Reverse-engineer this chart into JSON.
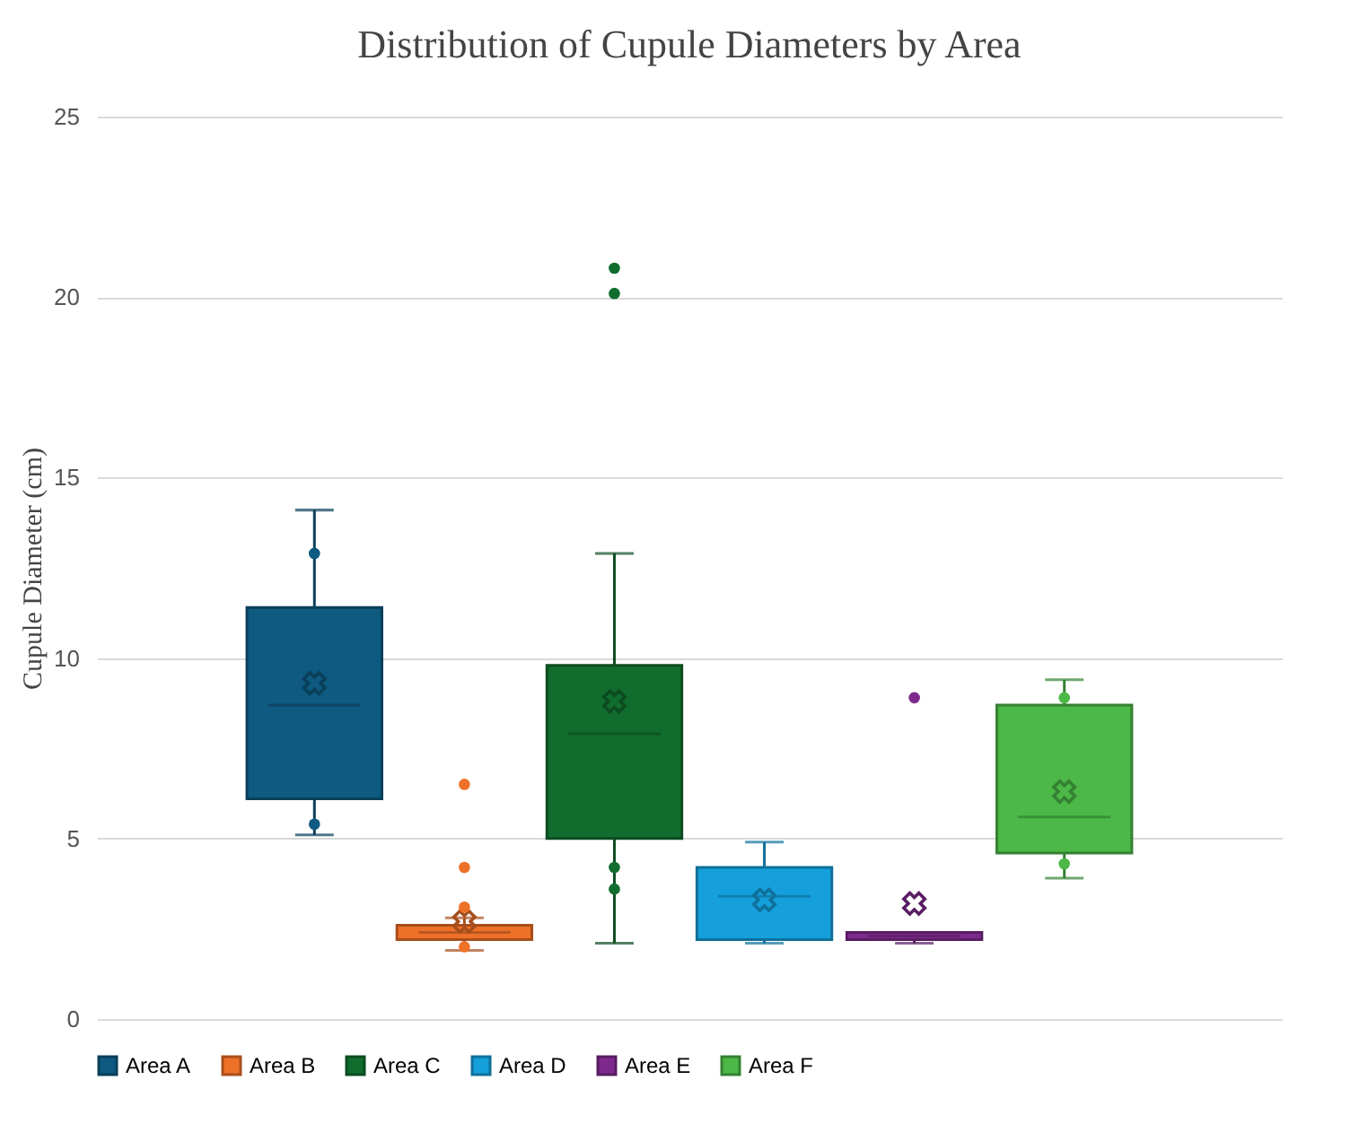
{
  "chart_data": {
    "type": "box",
    "title": "Distribution of Cupule Diameters by Area",
    "ylabel": "Cupule Diameter (cm)",
    "categories": [
      null
    ],
    "series": [
      {
        "name": "Area A",
        "color": "#0e5a80",
        "boxes": [
          {
            "low": 5.1,
            "q1": 6.1,
            "median": 8.7,
            "q3": 11.4,
            "high": 14.1,
            "mean": 9.3,
            "outliers": [
              12.9,
              5.4
            ]
          }
        ]
      },
      {
        "name": "Area B",
        "color": "#ee7128",
        "boxes": [
          {
            "low": 1.9,
            "q1": 2.2,
            "median": 2.4,
            "q3": 2.6,
            "high": 2.8,
            "mean": 2.7,
            "outliers": [
              6.5,
              4.2,
              3.1,
              2.0
            ]
          }
        ]
      },
      {
        "name": "Area C",
        "color": "#116d2e",
        "boxes": [
          {
            "low": 2.1,
            "q1": 5.0,
            "median": 7.9,
            "q3": 9.8,
            "high": 12.9,
            "mean": 8.8,
            "outliers": [
              20.8,
              20.1,
              4.2,
              3.6
            ]
          }
        ]
      },
      {
        "name": "Area D",
        "color": "#15a0dc",
        "boxes": [
          {
            "low": 2.1,
            "q1": 2.2,
            "median": 3.4,
            "q3": 4.2,
            "high": 4.9,
            "mean": 3.3
          }
        ]
      },
      {
        "name": "Area E",
        "color": "#7e2a8c",
        "boxes": [
          {
            "low": 2.1,
            "q1": 2.2,
            "median": 2.3,
            "q3": 2.4,
            "high": 2.4,
            "mean": 3.2,
            "outliers": [
              8.9
            ]
          }
        ]
      },
      {
        "name": "Area F",
        "color": "#4cb847",
        "boxes": [
          {
            "low": 3.9,
            "q1": 4.6,
            "median": 5.6,
            "q3": 8.7,
            "high": 9.4,
            "mean": 6.3,
            "outliers": [
              8.9,
              4.3
            ]
          }
        ]
      }
    ],
    "ylim": [
      0,
      25
    ],
    "yticks": [
      0,
      5,
      10,
      15,
      20,
      25
    ],
    "grid": "y",
    "legend": "bottom"
  }
}
